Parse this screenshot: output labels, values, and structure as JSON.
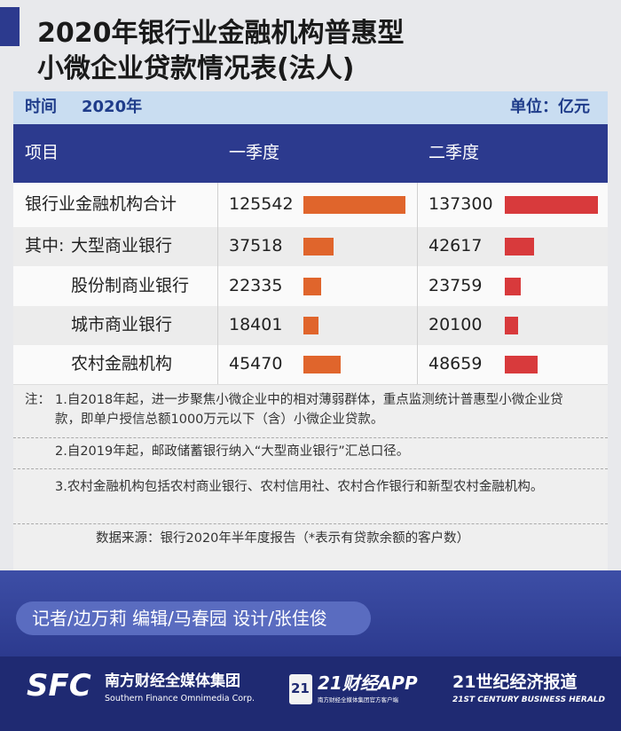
{
  "title_lines": [
    "2020年银行业金融机构普惠型",
    "小微企业贷款情况表(法人)"
  ],
  "meta": {
    "time_label": "时间",
    "year": "2020年",
    "unit": "单位：亿元"
  },
  "table": {
    "headers": [
      "项目",
      "一季度",
      "二季度"
    ],
    "bar_colors": [
      "#e0652c",
      "#d83a3c"
    ],
    "rows": [
      {
        "label": "银行业金融机构合计",
        "values": [
          125542,
          137300
        ]
      },
      {
        "prefix": "其中:",
        "label": "大型商业银行",
        "values": [
          37518,
          42617
        ]
      },
      {
        "label": "股份制商业银行",
        "values": [
          22335,
          23759
        ]
      },
      {
        "label": "城市商业银行",
        "values": [
          18401,
          20100
        ]
      },
      {
        "label": "农村金融机构",
        "values": [
          45470,
          48659
        ]
      }
    ]
  },
  "notes": {
    "prefix": "注：",
    "items": [
      "1.自2018年起，进一步聚焦小微企业中的相对薄弱群体，重点监测统计普惠型小微企业贷款，即单户授信总额1000万元以下（含）小微企业贷款。",
      "2.自2019年起，邮政储蓄银行纳入“大型商业银行”汇总口径。",
      "3.农村金融机构包括农村商业银行、农村信用社、农村合作银行和新型农村金融机构。"
    ],
    "source": "数据来源：银行2020年半年度报告（*表示有贷款余额的客户数）"
  },
  "credits": "记者/边万莉 编辑/马春园 设计/张佳俊",
  "footer": {
    "sfc_logo": "SFC",
    "sfc_name": "南方财经全媒体集团",
    "sfc_en": "Southern Finance Omnimedia Corp.",
    "app_badge": "21",
    "app_name": "21财经APP",
    "app_sub": "南方财经全媒体集团官方客户端",
    "herald_name": "21世纪经济报道",
    "herald_en": "21ST CENTURY BUSINESS HERALD"
  }
}
